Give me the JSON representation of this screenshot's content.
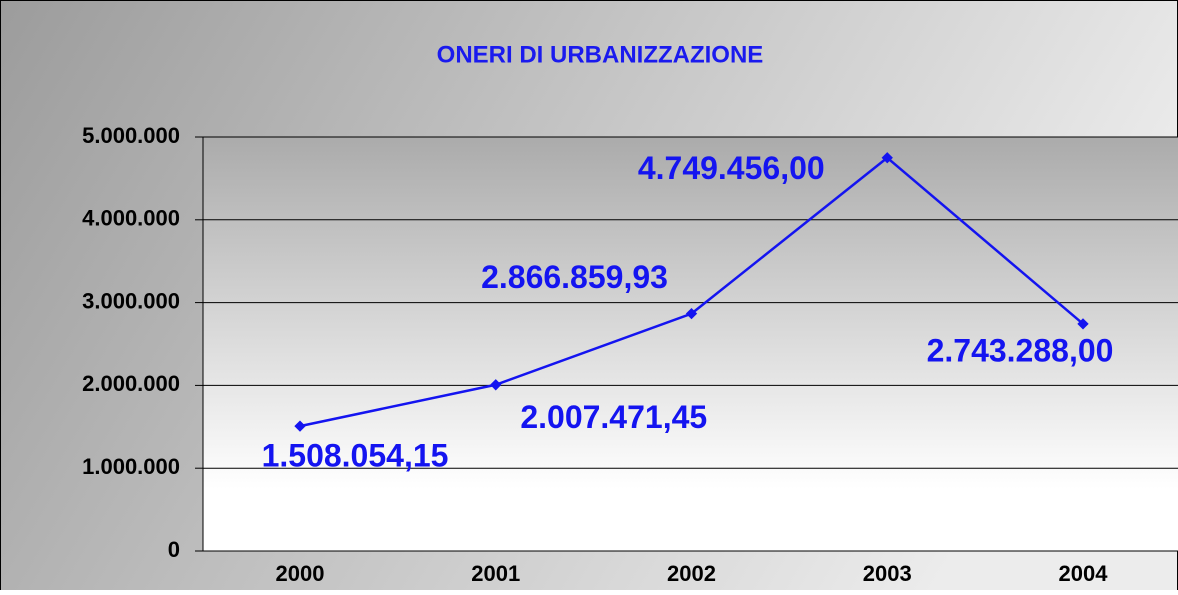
{
  "chart_data": {
    "type": "line",
    "title": "ONERI DI URBANIZZAZIONE",
    "categories": [
      "2000",
      "2001",
      "2002",
      "2003",
      "2004"
    ],
    "values": [
      1508054.15,
      2007471.45,
      2866859.93,
      4749456.0,
      2743288.0
    ],
    "value_labels": [
      "1.508.054,15",
      "2.007.471,45",
      "2.866.859,93",
      "4.749.456,00",
      "2.743.288,00"
    ],
    "color": "#1414f0",
    "ylim": [
      0,
      5000000
    ],
    "yticks": [
      0,
      {
        "value": 1000000,
        "label": "1.000.000"
      },
      {
        "value": 2000000,
        "label": "2.000.000"
      },
      {
        "value": 3000000,
        "label": "3.000.000"
      },
      {
        "value": 4000000,
        "label": "4.000.000"
      },
      {
        "value": 5000000,
        "label": "5.000.000"
      }
    ],
    "grid": true
  }
}
